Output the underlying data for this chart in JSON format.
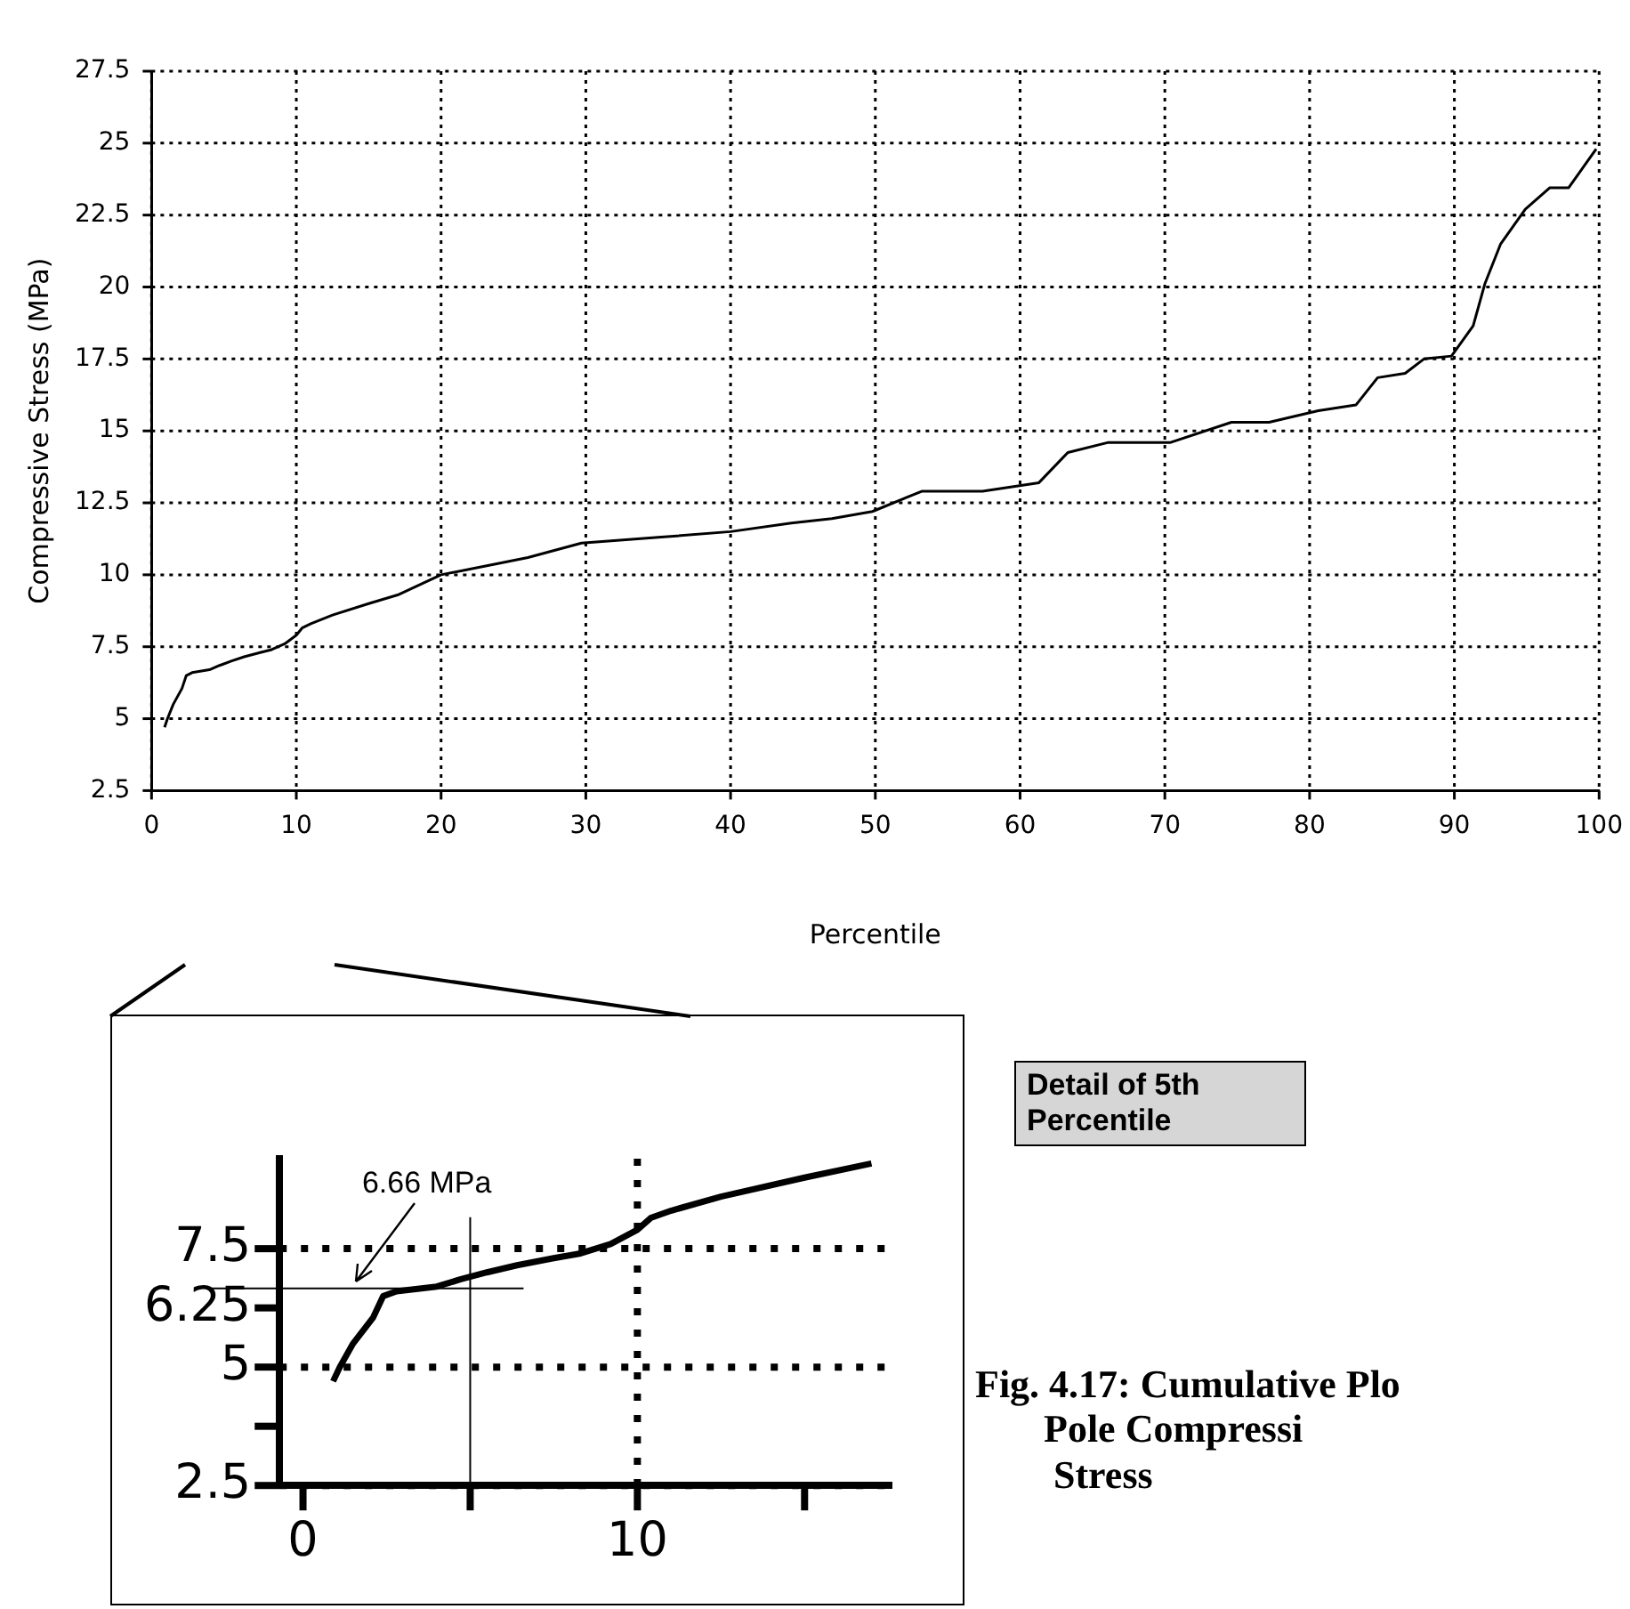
{
  "chart_data": [
    {
      "type": "line",
      "xlabel": "Percentile",
      "ylabel": "Compressive Stress (MPa)",
      "x": [
        0.9,
        1.1,
        1.5,
        2.1,
        2.4,
        2.8,
        4,
        4.7,
        5.5,
        6.4,
        7.5,
        8.3,
        9.2,
        10,
        10.4,
        11,
        12.5,
        15,
        17,
        20,
        23,
        26,
        29.7,
        35,
        40,
        44.2,
        47,
        49.8,
        53.2,
        57.4,
        61.3,
        63.3,
        66.1,
        70.4,
        74.6,
        77.2,
        80.6,
        83.2,
        84.7,
        86.6,
        87.9,
        89.8,
        91.3,
        92.1,
        93.2,
        94.9,
        96.6,
        97.9,
        99.8
      ],
      "series": [
        {
          "color": "#000000",
          "values": [
            4.7,
            5.0,
            5.5,
            6.05,
            6.5,
            6.6,
            6.7,
            6.85,
            7.0,
            7.15,
            7.3,
            7.4,
            7.6,
            7.9,
            8.15,
            8.3,
            8.6,
            9.0,
            9.3,
            10.0,
            10.3,
            10.6,
            11.1,
            11.3,
            11.5,
            11.8,
            11.95,
            12.2,
            12.9,
            12.9,
            13.2,
            14.25,
            14.6,
            14.6,
            15.3,
            15.3,
            15.7,
            15.9,
            16.85,
            17.0,
            17.5,
            17.6,
            18.65,
            20.1,
            21.5,
            22.7,
            23.45,
            23.45,
            24.8
          ]
        }
      ],
      "xlim": [
        0,
        100
      ],
      "xticks": [
        0,
        10,
        20,
        30,
        40,
        50,
        60,
        70,
        80,
        90,
        100
      ],
      "ylim": [
        2.5,
        27.5
      ],
      "yticks": [
        2.5,
        5,
        7.5,
        10,
        12.5,
        15,
        17.5,
        20,
        22.5,
        25,
        27.5
      ],
      "grid": true
    },
    {
      "type": "line",
      "x": [
        0.9,
        1.1,
        1.5,
        2.1,
        2.4,
        2.8,
        4,
        4.7,
        5.5,
        6.4,
        7.5,
        8.3,
        9.2,
        10,
        10.4,
        11,
        12.5,
        15,
        17
      ],
      "series": [
        {
          "color": "#000000",
          "values": [
            4.7,
            5.0,
            5.5,
            6.05,
            6.5,
            6.6,
            6.7,
            6.85,
            7.0,
            7.15,
            7.3,
            7.4,
            7.6,
            7.9,
            8.15,
            8.3,
            8.6,
            9.0,
            9.3
          ]
        }
      ],
      "xlim": [
        -0.7,
        17.6
      ],
      "xticks": [
        {
          "value": 0,
          "label": "0"
        },
        {
          "value": 5,
          "label": null
        },
        10,
        {
          "value": 15,
          "label": null
        }
      ],
      "ylim": [
        2.5,
        9.4
      ],
      "yticks": [
        2.5,
        {
          "value": 3.75,
          "label": null
        },
        5,
        {
          "value": 6.25,
          "label": "6.25"
        },
        7.5
      ],
      "grid": true,
      "ref_lines": [
        {
          "axis": "y",
          "value": 6.66
        },
        {
          "axis": "x",
          "value": 5
        }
      ],
      "annotations": [
        {
          "text": "6.66 MPa",
          "x": 1.5,
          "y": 6.66
        },
        "Detail of 5th Percentile",
        "Fig. 4.17: Cumulative Plo\n       Pole Compressi\n        Stress"
      ]
    }
  ]
}
